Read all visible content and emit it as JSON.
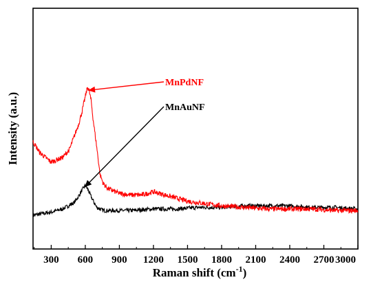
{
  "chart_data": {
    "type": "line",
    "xlabel": "Raman shift (cm",
    "xlabel_sup": "-1",
    "xlabel_close": ")",
    "ylabel": "Intensity (a.u.)",
    "xlim": [
      140,
      3000
    ],
    "ylim": [
      0,
      100
    ],
    "y_ticks_labeled": false,
    "x_ticks": [
      300,
      600,
      900,
      1200,
      1500,
      1800,
      2100,
      2400,
      2700,
      3000
    ],
    "x_tick_labels": [
      "300",
      "600",
      "900",
      "1200",
      "1500",
      "1800",
      "2100",
      "2400",
      "2700",
      "3000"
    ],
    "grid": false,
    "series": [
      {
        "name": "MnPdNF",
        "color": "#ff0000",
        "noise": 1.6,
        "x": [
          140,
          200,
          300,
          400,
          460,
          500,
          540,
          570,
          600,
          620,
          630,
          650,
          670,
          700,
          730,
          760,
          800,
          900,
          1000,
          1100,
          1200,
          1300,
          1400,
          1500,
          1600,
          1700,
          1800,
          2000,
          2200,
          2400,
          2600,
          2800,
          3000
        ],
        "values": [
          51,
          44,
          38,
          41,
          46,
          54,
          62,
          70,
          80,
          86,
          85,
          78,
          65,
          48,
          30,
          24,
          21,
          18,
          17,
          17,
          19,
          17,
          15,
          13,
          12,
          11,
          10,
          9,
          8,
          8,
          8,
          7,
          7
        ]
      },
      {
        "name": "MnAuNF",
        "color": "#000000",
        "noise": 1.3,
        "x": [
          140,
          300,
          400,
          450,
          500,
          540,
          570,
          600,
          620,
          650,
          700,
          760,
          850,
          1000,
          1200,
          1400,
          1600,
          1800,
          2000,
          2200,
          2400,
          2600,
          2800,
          3000
        ],
        "values": [
          4,
          6,
          8,
          10,
          12,
          16,
          20,
          23,
          21,
          16,
          9,
          7,
          7,
          7,
          8,
          8,
          9,
          9,
          10,
          10,
          10,
          9,
          9,
          8
        ]
      }
    ],
    "annotations": [
      {
        "text": "MnPdNF",
        "color": "#ff0000",
        "arrow_to_x": 625,
        "arrow_to_y": 84
      },
      {
        "text": "MnAuNF",
        "color": "#000000",
        "arrow_to_x": 595,
        "arrow_to_y": 22
      }
    ]
  }
}
